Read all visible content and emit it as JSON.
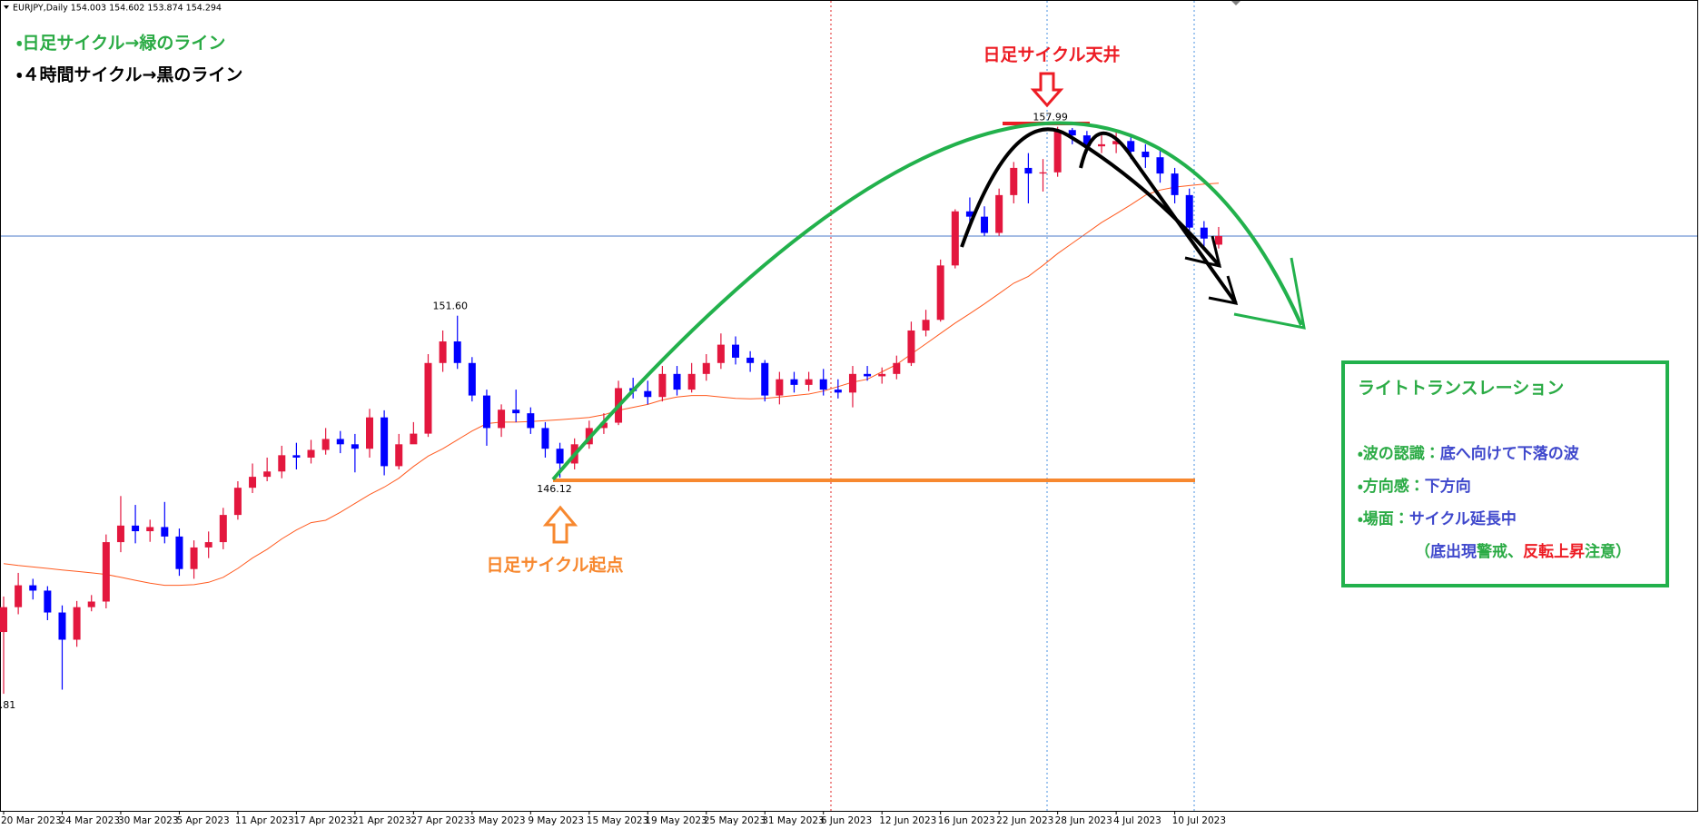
{
  "header": {
    "symbol_info": "EURJPY,Daily  154.003 154.602 153.874 154.294"
  },
  "chart_data": {
    "type": "candlestick",
    "categories": [
      "20 Mar 2023",
      null,
      null,
      null,
      "24 Mar 2023",
      null,
      null,
      null,
      "30 Mar 2023",
      null,
      null,
      null,
      "5 Apr 2023",
      null,
      null,
      null,
      "11 Apr 2023",
      null,
      null,
      null,
      "17 Apr 2023",
      null,
      null,
      null,
      "21 Apr 2023",
      null,
      null,
      null,
      "27 Apr 2023",
      null,
      null,
      null,
      "3 May 2023",
      null,
      null,
      null,
      "9 May 2023",
      null,
      null,
      null,
      "15 May 2023",
      null,
      null,
      null,
      "19 May 2023",
      null,
      null,
      null,
      "25 May 2023",
      null,
      null,
      null,
      "31 May 2023",
      null,
      null,
      null,
      "6 Jun 2023",
      null,
      null,
      null,
      "12 Jun 2023",
      null,
      null,
      null,
      "16 Jun 2023",
      null,
      null,
      null,
      "22 Jun 2023",
      null,
      null,
      null,
      "28 Jun 2023",
      null,
      null,
      null,
      "4 Jul 2023",
      null,
      null,
      null,
      "10 Jul 2023",
      null,
      null,
      null
    ],
    "open": [
      140.9,
      141.74,
      142.48,
      142.3,
      141.56,
      140.64,
      141.74,
      141.93,
      143.94,
      144.5,
      144.31,
      144.45,
      144.13,
      143.03,
      143.76,
      143.94,
      144.86,
      145.78,
      146.15,
      146.33,
      146.88,
      146.8,
      147.06,
      147.43,
      147.25,
      147.1,
      148.16,
      146.51,
      147.25,
      147.61,
      150.0,
      150.73,
      150.0,
      148.9,
      147.8,
      148.42,
      148.3,
      147.8,
      147.1,
      146.6,
      147.25,
      147.8,
      147.98,
      149.15,
      149.05,
      148.85,
      149.63,
      149.1,
      149.63,
      150.0,
      150.62,
      150.18,
      150.0,
      148.9,
      149.45,
      149.26,
      149.45,
      149.1,
      149.0,
      149.63,
      149.55,
      149.63,
      150.0,
      151.1,
      151.46,
      153.3,
      155.13,
      154.95,
      154.4,
      155.68,
      156.6,
      156.41,
      156.45,
      157.88,
      157.7,
      157.33,
      157.4,
      157.51,
      157.15,
      156.96,
      156.41,
      155.68,
      154.58,
      154.003
    ],
    "high": [
      142.1,
      142.9,
      142.7,
      142.45,
      141.8,
      141.95,
      142.15,
      144.2,
      145.5,
      145.2,
      144.7,
      145.3,
      144.4,
      144.0,
      144.3,
      145.1,
      146.0,
      146.6,
      146.8,
      147.2,
      147.3,
      147.4,
      147.8,
      147.7,
      147.6,
      148.45,
      148.4,
      147.6,
      148.0,
      150.3,
      151.1,
      151.6,
      150.2,
      149.1,
      148.6,
      149.1,
      148.5,
      148.0,
      147.3,
      147.45,
      148.05,
      148.3,
      149.4,
      149.5,
      149.4,
      149.9,
      149.9,
      150.0,
      150.3,
      151.0,
      150.9,
      150.4,
      150.1,
      149.7,
      149.7,
      149.7,
      149.8,
      149.45,
      149.9,
      149.9,
      149.85,
      150.25,
      151.4,
      151.8,
      153.5,
      155.2,
      155.6,
      155.3,
      155.9,
      156.8,
      157.1,
      156.9,
      157.99,
      157.95,
      157.85,
      157.7,
      157.8,
      157.7,
      157.4,
      157.2,
      156.6,
      155.9,
      154.8,
      154.602
    ],
    "low": [
      138.81,
      141.5,
      142.0,
      141.3,
      138.95,
      140.4,
      141.6,
      141.7,
      143.6,
      143.9,
      143.95,
      143.9,
      142.8,
      142.7,
      143.4,
      143.7,
      144.7,
      145.6,
      146.0,
      146.1,
      146.4,
      146.6,
      146.9,
      146.95,
      146.3,
      146.8,
      146.2,
      146.4,
      147.3,
      147.5,
      149.7,
      149.8,
      148.7,
      147.2,
      147.5,
      148.0,
      147.6,
      146.8,
      146.12,
      146.4,
      147.1,
      147.6,
      147.9,
      148.8,
      148.6,
      148.7,
      148.9,
      149.0,
      149.4,
      149.8,
      149.95,
      149.7,
      148.7,
      148.6,
      149.0,
      149.05,
      148.9,
      148.8,
      148.5,
      149.4,
      149.3,
      149.45,
      149.9,
      150.9,
      151.4,
      153.2,
      154.6,
      154.3,
      154.3,
      155.4,
      155.4,
      155.8,
      156.3,
      157.4,
      157.1,
      157.1,
      157.1,
      156.9,
      156.6,
      156.1,
      155.4,
      154.4,
      153.95,
      153.874
    ],
    "close": [
      141.74,
      142.48,
      142.3,
      141.56,
      140.64,
      141.74,
      141.93,
      143.94,
      144.5,
      144.31,
      144.45,
      144.13,
      143.03,
      143.76,
      143.94,
      144.86,
      145.78,
      146.15,
      146.33,
      146.88,
      146.8,
      147.06,
      147.43,
      147.25,
      147.1,
      148.16,
      146.51,
      147.25,
      147.61,
      150.0,
      150.73,
      150.0,
      148.9,
      147.8,
      148.42,
      148.3,
      147.8,
      147.1,
      146.6,
      147.25,
      147.8,
      147.98,
      149.15,
      149.05,
      148.85,
      149.63,
      149.1,
      149.63,
      150.0,
      150.62,
      150.18,
      150.0,
      148.9,
      149.45,
      149.26,
      149.45,
      149.1,
      149.0,
      149.63,
      149.55,
      149.63,
      150.0,
      151.1,
      151.46,
      153.3,
      155.13,
      154.95,
      154.4,
      155.68,
      156.6,
      156.41,
      156.45,
      157.88,
      157.7,
      157.33,
      157.4,
      157.51,
      157.15,
      156.96,
      156.41,
      155.68,
      154.58,
      154.21,
      154.294
    ],
    "high_value_labels": [
      null,
      null,
      null,
      null,
      null,
      null,
      null,
      null,
      null,
      null,
      null,
      null,
      null,
      null,
      null,
      null,
      null,
      null,
      null,
      null,
      null,
      null,
      null,
      null,
      null,
      null,
      null,
      null,
      null,
      null,
      null,
      "151.60",
      null,
      null,
      null,
      null,
      null,
      null,
      null,
      null,
      null,
      null,
      null,
      null,
      null,
      null,
      null,
      null,
      null,
      null,
      null,
      null,
      null,
      null,
      null,
      null,
      null,
      null,
      null,
      null,
      null,
      null,
      null,
      null,
      null,
      null,
      null,
      null,
      null,
      null,
      null,
      null,
      "157.99",
      null,
      null,
      null,
      null,
      null,
      null,
      null,
      null,
      null,
      null,
      null
    ],
    "low_value_labels": [
      "138.81",
      null,
      null,
      null,
      null,
      null,
      null,
      null,
      null,
      null,
      null,
      null,
      null,
      null,
      null,
      null,
      null,
      null,
      null,
      null,
      null,
      null,
      null,
      null,
      null,
      null,
      null,
      null,
      null,
      null,
      null,
      null,
      null,
      null,
      null,
      null,
      null,
      null,
      "146.12",
      null,
      null,
      null,
      null,
      null,
      null,
      null,
      null,
      null,
      null,
      null,
      null,
      null,
      null,
      null,
      null,
      null,
      null,
      null,
      null,
      null,
      null,
      null,
      null,
      null,
      null,
      null,
      null,
      null,
      null,
      null,
      null,
      null,
      null,
      null,
      null,
      null,
      null,
      null,
      null,
      null,
      null,
      null,
      null,
      null
    ],
    "up_color": "#e3173e",
    "down_color": "#0000ff",
    "moving_average": {
      "color": "#ff5a1f",
      "values": [
        143.21,
        143.15,
        143.1,
        143.05,
        143.0,
        142.95,
        142.9,
        142.85,
        142.75,
        142.65,
        142.55,
        142.48,
        142.48,
        142.5,
        142.58,
        142.75,
        143.05,
        143.4,
        143.7,
        144.05,
        144.35,
        144.6,
        144.68,
        144.95,
        145.25,
        145.55,
        145.8,
        146.1,
        146.5,
        146.85,
        147.1,
        147.4,
        147.7,
        147.95,
        148.0,
        148.0,
        148.02,
        148.05,
        148.08,
        148.12,
        148.16,
        148.25,
        148.4,
        148.5,
        148.6,
        148.75,
        148.85,
        148.9,
        148.9,
        148.85,
        148.8,
        148.79,
        148.8,
        148.85,
        148.9,
        148.95,
        149.05,
        149.2,
        149.35,
        149.45,
        149.7,
        149.95,
        150.3,
        150.65,
        151.0,
        151.35,
        151.67,
        152.0,
        152.35,
        152.7,
        152.93,
        153.3,
        153.7,
        154.05,
        154.4,
        154.75,
        155.05,
        155.35,
        155.68,
        155.85,
        155.95,
        156.0,
        156.05,
        156.08
      ]
    },
    "ylim": [
      134.85,
      162.28
    ],
    "bid_line_color": "#4a78c8"
  },
  "annotations": {
    "legend_daily": "・日足サイクル→緑のライン",
    "legend_4h": "・４時間サイクル→黒のライン",
    "top_label": "日足サイクル天井",
    "start_label": "日足サイクル起点"
  },
  "info_box": {
    "title": "ライトトランスレーション",
    "lines": [
      [
        {
          "text": "・波の認識：",
          "color": "#2bab45"
        },
        {
          "text": "底へ向けて下落の波",
          "color": "#3f48cc"
        }
      ],
      [
        {
          "text": "・方向感：",
          "color": "#2bab45"
        },
        {
          "text": "下方向",
          "color": "#3f48cc"
        }
      ],
      [
        {
          "text": "・場面：",
          "color": "#2bab45"
        },
        {
          "text": "サイクル延長中",
          "color": "#3f48cc"
        }
      ],
      [
        {
          "text": "（",
          "color": "#2bab45"
        },
        {
          "text": "底出現",
          "color": "#3f48cc"
        },
        {
          "text": "警戒、",
          "color": "#2bab45"
        },
        {
          "text": "反転上昇",
          "color": "#ed1c24"
        },
        {
          "text": "注意）",
          "color": "#2bab45"
        }
      ]
    ]
  }
}
